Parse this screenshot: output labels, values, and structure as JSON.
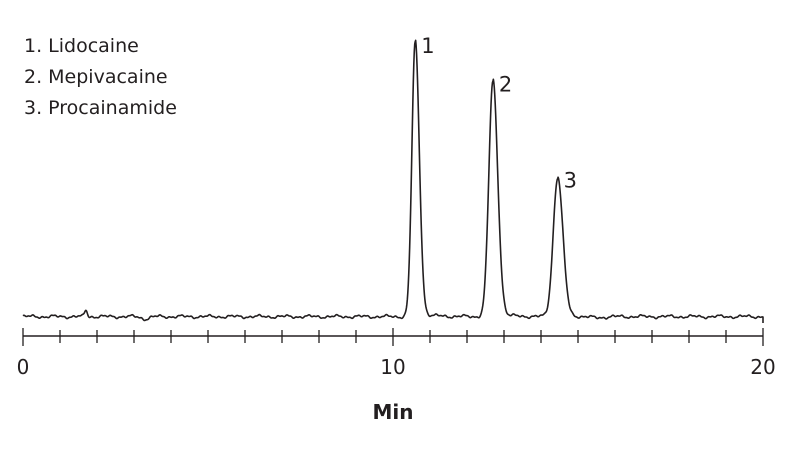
{
  "chart_data": {
    "type": "line",
    "title": "",
    "xlabel": "Min",
    "ylabel": "",
    "xlim": [
      0,
      20
    ],
    "ylim": [
      0,
      100
    ],
    "grid": false,
    "legend": {
      "placement": "top-left",
      "entries": [
        "1. Lidocaine",
        "2. Mepivacaine",
        "3. Procainamide"
      ]
    },
    "x_ticks": [
      0,
      10,
      20
    ],
    "x_minor_tick_step": 1,
    "series": [
      {
        "color": "#231f20",
        "baseline": 0.5,
        "noise_bumps": [
          {
            "x": 1.7,
            "height": 2.4,
            "width": 0.05
          },
          {
            "x": 3.3,
            "height": -0.8,
            "width": 0.15
          },
          {
            "x": 15.5,
            "height": -0.4,
            "width": 0.3
          }
        ],
        "peaks": [
          {
            "label": "1",
            "compound": "Lidocaine",
            "retention_time": 10.6,
            "height": 98.5,
            "width_left": 0.09,
            "width_right": 0.11,
            "tail": 0.4
          },
          {
            "label": "2",
            "compound": "Mepivacaine",
            "retention_time": 12.7,
            "height": 84.5,
            "width_left": 0.11,
            "width_right": 0.13,
            "tail": 0.4
          },
          {
            "label": "3",
            "compound": "Procainamide",
            "retention_time": 14.45,
            "height": 50,
            "width_left": 0.12,
            "width_right": 0.14,
            "tail": 0.4
          }
        ]
      }
    ]
  }
}
